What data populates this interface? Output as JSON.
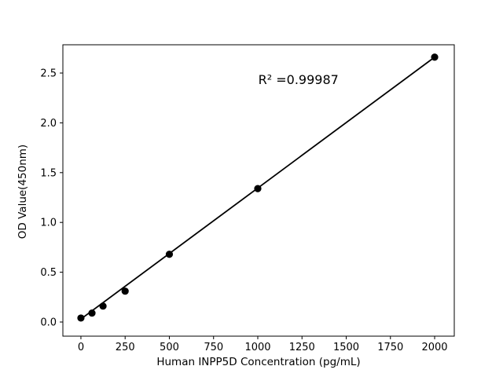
{
  "figure": {
    "background": "#ffffff",
    "foreground": "#000000"
  },
  "chart_data": {
    "type": "scatter",
    "title": "",
    "xlabel": "Human INPP5D Concentration (pg/mL)",
    "ylabel": "OD Value(450nm)",
    "x": [
      0,
      62.5,
      125,
      250,
      500,
      1000,
      2000
    ],
    "y": [
      0.04,
      0.09,
      0.16,
      0.31,
      0.68,
      1.34,
      2.66
    ],
    "series_name": "standard-curve-points",
    "marker": "circle",
    "marker_color": "#000000",
    "line_color": "#000000",
    "grid": false,
    "legend": "none",
    "xlim": [
      -102,
      2111
    ],
    "ylim": [
      -0.142,
      2.784
    ],
    "x_ticks": {
      "values": [
        0,
        250,
        500,
        750,
        1000,
        1250,
        1500,
        1750,
        2000
      ],
      "labels": [
        "0",
        "250",
        "500",
        "750",
        "1000",
        "1250",
        "1500",
        "1750",
        "2000"
      ]
    },
    "y_ticks": {
      "values": [
        0.0,
        0.5,
        1.0,
        1.5,
        2.0,
        2.5
      ],
      "labels": [
        "0.0",
        "0.5",
        "1.0",
        "1.5",
        "2.0",
        "2.5"
      ]
    },
    "trend_line": {
      "x1": 0,
      "y1": 0.03,
      "x2": 2000,
      "y2": 2.66
    },
    "annotation": {
      "text": "R² =0.99987",
      "x": 1230,
      "y": 2.43
    }
  }
}
